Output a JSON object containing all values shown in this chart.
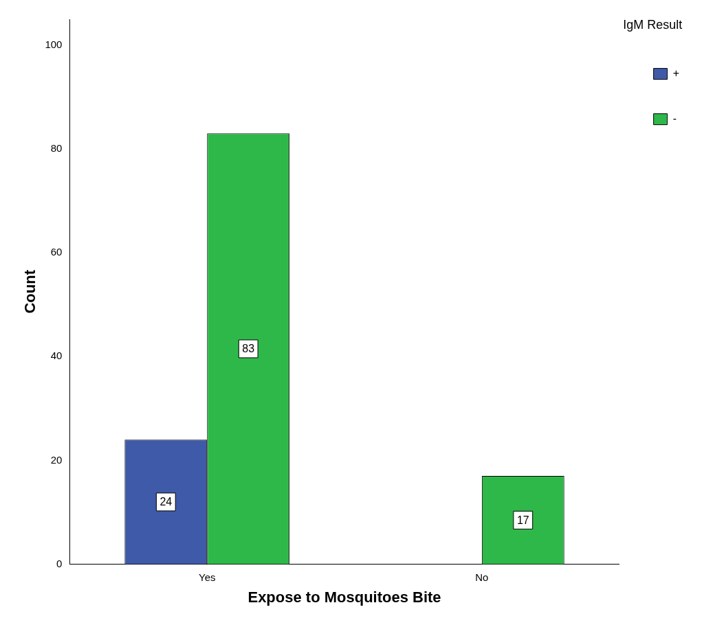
{
  "chart_data": {
    "type": "bar",
    "xlabel": "Expose to Mosquitoes Bite",
    "ylabel": "Count",
    "legend_title": "IgM Result",
    "categories": [
      "Yes",
      "No"
    ],
    "series": [
      {
        "name": "+",
        "color": "#3f5aa8",
        "values": [
          24,
          null
        ]
      },
      {
        "name": "-",
        "color": "#2eb84a",
        "values": [
          83,
          17
        ]
      }
    ],
    "ylim": [
      0,
      105
    ],
    "yticks": [
      0,
      20,
      40,
      60,
      80,
      100
    ],
    "grid": false,
    "legend": "top right",
    "data_labels": true
  }
}
